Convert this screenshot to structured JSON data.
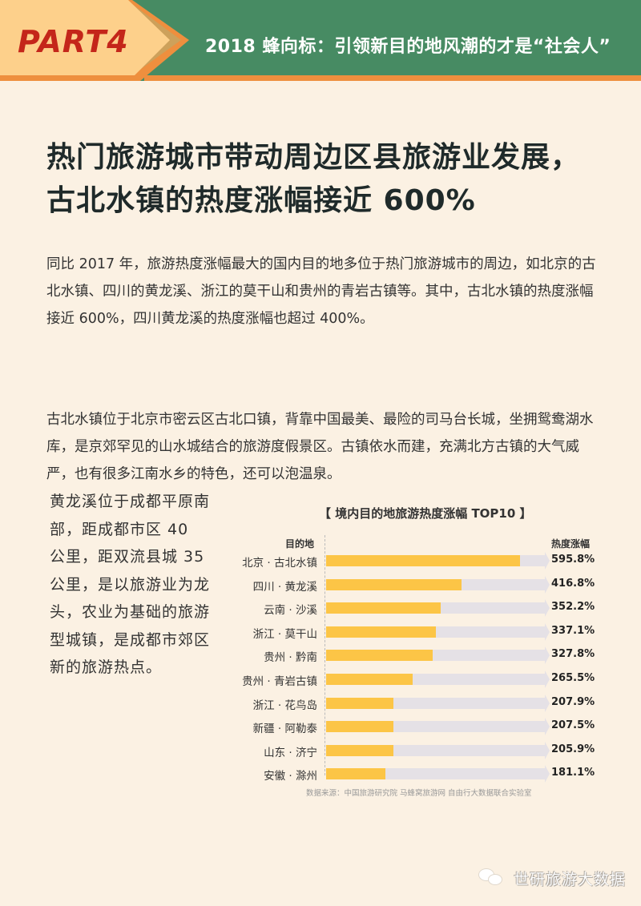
{
  "header": {
    "part": "PART4",
    "title": "2018 蜂向标：引领新目的地风潮的才是“社会人”",
    "colors": {
      "green": "#478b63",
      "orange": "#ee8f3e",
      "peach": "#fdd08b",
      "part_red": "#c4261a"
    }
  },
  "main_title": {
    "line1": "热门旅游城市带动周边区县旅游业发展，",
    "line2": "古北水镇的热度涨幅接近 600%"
  },
  "paragraphs": [
    "同比 2017 年，旅游热度涨幅最大的国内目的地多位于热门旅游城市的周边，如北京的古北水镇、四川的黄龙溪、浙江的莫干山和贵州的青岩古镇等。其中，古北水镇的热度涨幅接近 600%，四川黄龙溪的热度涨幅也超过 400%。",
    "古北水镇位于北京市密云区古北口镇，背靠中国最美、最险的司马台长城，坐拥鸳鸯湖水库，是京郊罕见的山水城结合的旅游度假景区。古镇依水而建，充满北方古镇的大气威严，也有很多江南水乡的特色，还可以泡温泉。"
  ],
  "side_text": "黄龙溪位于成都平原南部，距成都市区 40 公里，距双流县城 35 公里，是以旅游业为龙头，农业为基础的旅游型城镇，是成都市郊区新的旅游热点。",
  "chart": {
    "title": "【 境内目的地旅游热度涨幅 TOP10 】",
    "col_dest": "目的地",
    "col_val": "热度涨幅",
    "source": "数据来源：中国旅游研究院 马蜂窝旅游网 自由行大数据联合实验室",
    "rows": [
      {
        "label": "北京 · 古北水镇",
        "value": 595.8,
        "display": "595.8%"
      },
      {
        "label": "四川 · 黄龙溪",
        "value": 416.8,
        "display": "416.8%"
      },
      {
        "label": "云南 · 沙溪",
        "value": 352.2,
        "display": "352.2%"
      },
      {
        "label": "浙江 · 莫干山",
        "value": 337.1,
        "display": "337.1%"
      },
      {
        "label": "贵州 · 黔南",
        "value": 327.8,
        "display": "327.8%"
      },
      {
        "label": "贵州 · 青岩古镇",
        "value": 265.5,
        "display": "265.5%"
      },
      {
        "label": "浙江 · 花鸟岛",
        "value": 207.9,
        "display": "207.9%"
      },
      {
        "label": "新疆 · 阿勒泰",
        "value": 207.5,
        "display": "207.5%"
      },
      {
        "label": "山东 · 济宁",
        "value": 205.9,
        "display": "205.9%"
      },
      {
        "label": "安徽 · 滁州",
        "value": 181.1,
        "display": "181.1%"
      }
    ],
    "colors": {
      "bar": "#fcc546",
      "track": "#e5e1e6"
    }
  },
  "chart_data": {
    "type": "bar",
    "orientation": "horizontal",
    "title": "境内目的地旅游热度涨幅 TOP10",
    "xlabel": "热度涨幅",
    "ylabel": "目的地",
    "categories": [
      "北京 · 古北水镇",
      "四川 · 黄龙溪",
      "云南 · 沙溪",
      "浙江 · 莫干山",
      "贵州 · 黔南",
      "贵州 · 青岩古镇",
      "浙江 · 花鸟岛",
      "新疆 · 阿勒泰",
      "山东 · 济宁",
      "安徽 · 滁州"
    ],
    "values": [
      595.8,
      416.8,
      352.2,
      337.1,
      327.8,
      265.5,
      207.9,
      207.5,
      205.9,
      181.1
    ],
    "unit": "%",
    "grid": false,
    "legend": null,
    "source": "数据来源：中国旅游研究院 马蜂窝旅游网 自由行大数据联合实验室"
  },
  "footer": {
    "icon": "wechat-icon",
    "account_name": "世研旅游大数据"
  }
}
